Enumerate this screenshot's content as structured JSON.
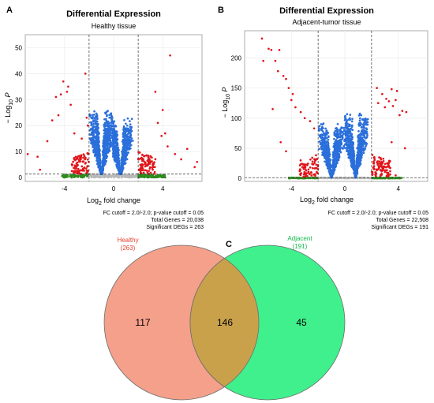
{
  "colors": {
    "ns": "#b8b8b8",
    "log2fc": "#2e8b1e",
    "pvalue": "#2a6fdb",
    "both": "#e0161b",
    "healthy_fill": "#f4a08a",
    "adjacent_fill": "#3ff08c",
    "overlap_fill": "#c9a14b",
    "healthy_label": "#e8432f",
    "adjacent_label": "#10b84a"
  },
  "panel_labels": [
    "A",
    "B",
    "C"
  ],
  "chart_data": [
    {
      "type": "scatter",
      "title": "Differential Expression",
      "subtitle": "Healthy tissue",
      "xlabel_main": "Log",
      "xlabel_sub": "2",
      "xlabel_tail": " fold change",
      "ylabel_main": "− Log",
      "ylabel_sub": "10",
      "ylabel_tail": " P",
      "xlim": [
        -7.2,
        7.2
      ],
      "ylim": [
        -1.5,
        55
      ],
      "xticks": [
        -4,
        0,
        4
      ],
      "xtick_labels": [
        "-4",
        "0",
        "4"
      ],
      "yticks": [
        0,
        10,
        20,
        30,
        40,
        50
      ],
      "ytick_labels": [
        "0",
        "10",
        "20",
        "30",
        "40",
        "50"
      ],
      "fc_cutoff": 2.0,
      "p_threshold_y": 1.3,
      "caption": [
        "FC cutoff = 2.0/-2.0; p-value cutoff = 0.05",
        "Total Genes = 20,038",
        "Significant DEGs = 263"
      ],
      "grid": true,
      "shape": {
        "left_max": 27,
        "right_max": 23,
        "left_center": -1.0,
        "right_center": 0.55,
        "width": 1.05
      },
      "outliers": [
        [
          -7.0,
          9
        ],
        [
          -6.2,
          8
        ],
        [
          -6.0,
          3
        ],
        [
          -5.4,
          14
        ],
        [
          -5.0,
          22
        ],
        [
          -4.7,
          31
        ],
        [
          -4.5,
          24
        ],
        [
          -4.3,
          32
        ],
        [
          -4.1,
          37
        ],
        [
          -3.8,
          33
        ],
        [
          -3.7,
          35
        ],
        [
          -3.5,
          28
        ],
        [
          -3.2,
          17
        ],
        [
          -2.6,
          15
        ],
        [
          -2.3,
          40
        ],
        [
          -2.2,
          23
        ],
        [
          -2.1,
          20
        ],
        [
          3.4,
          33
        ],
        [
          3.6,
          21
        ],
        [
          3.9,
          16
        ],
        [
          4.0,
          26
        ],
        [
          4.2,
          17
        ],
        [
          4.4,
          12
        ],
        [
          4.6,
          47
        ],
        [
          5.0,
          9
        ],
        [
          5.5,
          7
        ],
        [
          6.0,
          11
        ],
        [
          6.6,
          4
        ],
        [
          6.8,
          6
        ]
      ]
    },
    {
      "type": "scatter",
      "title": "Differential Expression",
      "subtitle": "Adjacent-tumor tissue",
      "xlabel_main": "Log",
      "xlabel_sub": "2",
      "xlabel_tail": " fold change",
      "ylabel_main": "− Log",
      "ylabel_sub": "10",
      "ylabel_tail": " P",
      "xlim": [
        -7.5,
        6.2
      ],
      "ylim": [
        -5,
        245
      ],
      "xticks": [
        -4,
        0,
        4
      ],
      "xtick_labels": [
        "-4",
        "0",
        "4"
      ],
      "yticks": [
        0,
        50,
        100,
        150,
        200
      ],
      "ytick_labels": [
        "0",
        "50",
        "100",
        "150",
        "200"
      ],
      "fc_cutoff": 2.0,
      "p_threshold_y": 1.3,
      "caption": [
        "FC cutoff = 2.0/-2.0; p-value cutoff = 0.05",
        "Total Genes = 22,508",
        "Significant DEGs = 191"
      ],
      "grid": true,
      "shape": {
        "left_max": 95,
        "right_max": 110,
        "left_center": -1.0,
        "right_center": 0.8,
        "width": 1.0
      },
      "outliers": [
        [
          -6.2,
          232
        ],
        [
          -6.1,
          195
        ],
        [
          -5.7,
          215
        ],
        [
          -5.5,
          213
        ],
        [
          -5.2,
          195
        ],
        [
          -5.0,
          178
        ],
        [
          -4.9,
          213
        ],
        [
          -4.6,
          170
        ],
        [
          -4.4,
          165
        ],
        [
          -4.2,
          150
        ],
        [
          -4.0,
          130
        ],
        [
          -3.9,
          140
        ],
        [
          -3.7,
          118
        ],
        [
          -3.3,
          110
        ],
        [
          -3.0,
          100
        ],
        [
          -2.6,
          95
        ],
        [
          -2.3,
          83
        ],
        [
          -4.8,
          60
        ],
        [
          -4.4,
          45
        ],
        [
          -5.4,
          115
        ],
        [
          2.4,
          150
        ],
        [
          2.5,
          125
        ],
        [
          2.8,
          140
        ],
        [
          3.0,
          118
        ],
        [
          3.1,
          132
        ],
        [
          3.3,
          128
        ],
        [
          3.5,
          148
        ],
        [
          3.6,
          120
        ],
        [
          3.8,
          130
        ],
        [
          3.9,
          145
        ],
        [
          4.1,
          105
        ],
        [
          4.3,
          112
        ],
        [
          4.6,
          110
        ],
        [
          3.5,
          60
        ],
        [
          3.8,
          5
        ],
        [
          4.5,
          50
        ]
      ]
    }
  ],
  "venn": {
    "healthy_name": "Healthy",
    "healthy_count": "(263)",
    "adjacent_name": "Adjacent",
    "adjacent_count": "(191)",
    "only_healthy": "117",
    "overlap": "146",
    "only_adjacent": "45"
  }
}
